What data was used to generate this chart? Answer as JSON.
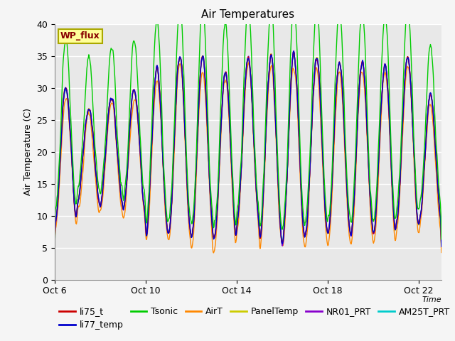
{
  "title": "Air Temperatures",
  "xlabel": "Time",
  "ylabel": "Air Temperature (C)",
  "ylim": [
    0,
    40
  ],
  "x_tick_labels": [
    "Oct 6",
    "Oct 10",
    "Oct 14",
    "Oct 18",
    "Oct 22"
  ],
  "x_tick_positions": [
    0,
    4,
    8,
    12,
    16
  ],
  "series_colors": {
    "li75_t": "#cc0000",
    "li77_temp": "#0000cc",
    "Tsonic": "#00cc00",
    "AirT": "#ff8800",
    "PanelTemp": "#cccc00",
    "NR01_PRT": "#8800cc",
    "AM25T_PRT": "#00cccc"
  },
  "legend_labels": [
    "li75_t",
    "li77_temp",
    "Tsonic",
    "AirT",
    "PanelTemp",
    "NR01_PRT",
    "AM25T_PRT"
  ],
  "wp_flux_box_facecolor": "#ffff99",
  "wp_flux_text_color": "#880000",
  "wp_flux_edge_color": "#aaa800",
  "fig_facecolor": "#f5f5f5",
  "ax_facecolor": "#e8e8e8",
  "grid_color": "#ffffff",
  "title_fontsize": 11,
  "label_fontsize": 9,
  "tick_fontsize": 9,
  "legend_fontsize": 9
}
